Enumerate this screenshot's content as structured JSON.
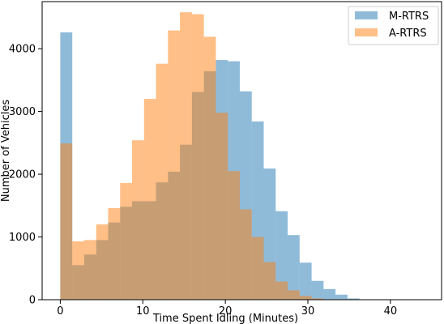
{
  "chart_data": {
    "type": "histogram",
    "xlabel": "Time Spent Idling (Minutes)",
    "ylabel": "Number of Vehicles",
    "xlim": [
      -2.2,
      46.2
    ],
    "ylim": [
      0,
      4750
    ],
    "xticks": [
      0,
      10,
      20,
      30,
      40
    ],
    "yticks": [
      0,
      1000,
      2000,
      3000,
      4000
    ],
    "bin_width": 1.45,
    "bin_start": 0,
    "legend_position": "top-right",
    "series": [
      {
        "name": "M-RTRS",
        "color": "#1f77b4",
        "alpha": 0.5,
        "values": [
          4260,
          550,
          720,
          950,
          1230,
          1480,
          1570,
          1570,
          1870,
          2040,
          2470,
          3310,
          3640,
          3820,
          3800,
          3320,
          2840,
          2090,
          1410,
          1030,
          590,
          300,
          170,
          80,
          20,
          0,
          0,
          0,
          0,
          0
        ]
      },
      {
        "name": "A-RTRS",
        "color": "#ff7f0e",
        "alpha": 0.5,
        "values": [
          2490,
          930,
          950,
          1200,
          1460,
          1860,
          2540,
          3200,
          3760,
          4290,
          4580,
          4550,
          4190,
          2980,
          2050,
          1440,
          1000,
          600,
          290,
          150,
          60,
          20,
          0,
          0,
          0,
          0,
          0,
          0,
          0,
          0
        ]
      }
    ]
  }
}
